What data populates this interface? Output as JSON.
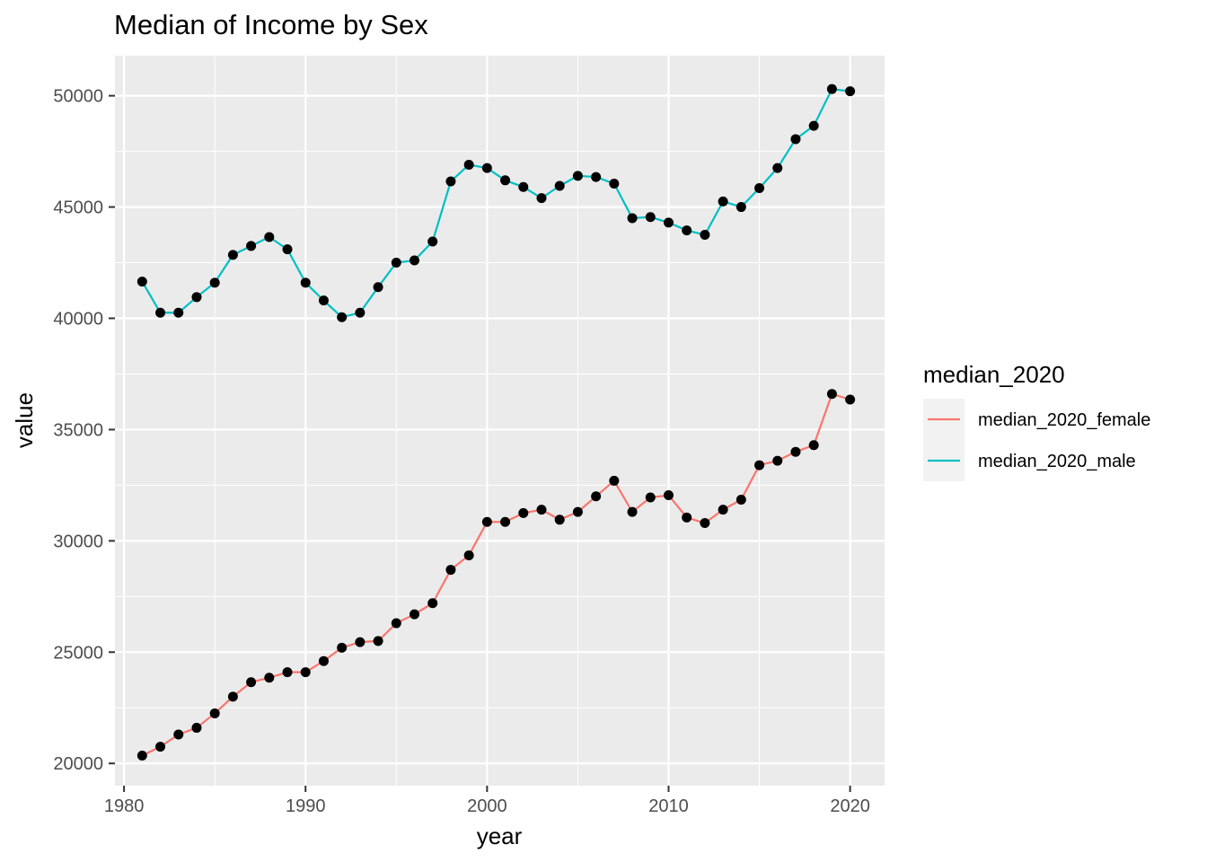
{
  "chart_data": {
    "type": "line",
    "title": "Median of Income by Sex",
    "xlabel": "year",
    "ylabel": "value",
    "xlim": [
      1979.5,
      2021.9
    ],
    "ylim": [
      19000,
      51800
    ],
    "x_ticks": [
      1980,
      1990,
      2000,
      2010,
      2020
    ],
    "y_ticks": [
      20000,
      25000,
      30000,
      35000,
      40000,
      45000,
      50000
    ],
    "grid": true,
    "legend": {
      "title": "median_2020",
      "position": "right"
    },
    "x": [
      1981,
      1982,
      1983,
      1984,
      1985,
      1986,
      1987,
      1988,
      1989,
      1990,
      1991,
      1992,
      1993,
      1994,
      1995,
      1996,
      1997,
      1998,
      1999,
      2000,
      2001,
      2002,
      2003,
      2004,
      2005,
      2006,
      2007,
      2008,
      2009,
      2010,
      2011,
      2012,
      2013,
      2014,
      2015,
      2016,
      2017,
      2018,
      2019,
      2020
    ],
    "series": [
      {
        "name": "median_2020_female",
        "color": "#F8766D",
        "values": [
          20350,
          20750,
          21300,
          21600,
          22250,
          23000,
          23650,
          23850,
          24100,
          24100,
          24600,
          25200,
          25450,
          25500,
          26300,
          26700,
          27200,
          28700,
          29350,
          30850,
          30850,
          31250,
          31400,
          30950,
          31300,
          32000,
          32700,
          31300,
          31950,
          32050,
          31050,
          30800,
          31400,
          31850,
          33400,
          33600,
          34000,
          34300,
          36600,
          36350
        ]
      },
      {
        "name": "median_2020_male",
        "color": "#00BFC4",
        "values": [
          41650,
          40250,
          40250,
          40950,
          41600,
          42850,
          43250,
          43650,
          43100,
          41600,
          40800,
          40050,
          40250,
          41400,
          42500,
          42600,
          43450,
          46150,
          46900,
          46750,
          46200,
          45900,
          45400,
          45950,
          46400,
          46350,
          46050,
          44500,
          44550,
          44300,
          43950,
          43750,
          45250,
          45000,
          45850,
          46750,
          48050,
          48650,
          50300,
          50200
        ]
      }
    ]
  }
}
